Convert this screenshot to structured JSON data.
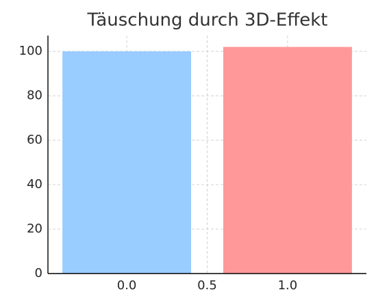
{
  "chart_data": {
    "type": "bar",
    "title": "Täuschung durch 3D-Effekt",
    "x": [
      0,
      1
    ],
    "values": [
      100,
      102
    ],
    "colors": [
      "#99ccff",
      "#ff9999"
    ],
    "xlim": [
      -0.49,
      1.49
    ],
    "xticks": [
      {
        "value": 0,
        "label": "0.0"
      },
      {
        "value": 0.5,
        "label": "0.5"
      },
      {
        "value": 1,
        "label": "1.0"
      }
    ],
    "ylim": [
      0,
      107.1
    ],
    "yticks": [
      0,
      20,
      40,
      60,
      80,
      100
    ],
    "grid": true
  }
}
